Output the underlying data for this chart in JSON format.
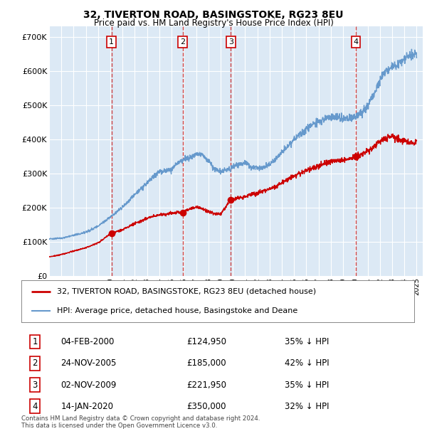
{
  "title": "32, TIVERTON ROAD, BASINGSTOKE, RG23 8EU",
  "subtitle": "Price paid vs. HM Land Registry's House Price Index (HPI)",
  "ylabel_ticks": [
    "£0",
    "£100K",
    "£200K",
    "£300K",
    "£400K",
    "£500K",
    "£600K",
    "£700K"
  ],
  "ytick_vals": [
    0,
    100000,
    200000,
    300000,
    400000,
    500000,
    600000,
    700000
  ],
  "ylim": [
    0,
    730000
  ],
  "xlim_start": 1995.0,
  "xlim_end": 2025.5,
  "plot_bg_color": "#dce9f5",
  "grid_color": "#ffffff",
  "transactions": [
    {
      "num": 1,
      "date_x": 2000.09,
      "price": 124950
    },
    {
      "num": 2,
      "date_x": 2005.9,
      "price": 185000
    },
    {
      "num": 3,
      "date_x": 2009.84,
      "price": 221950
    },
    {
      "num": 4,
      "date_x": 2020.04,
      "price": 350000
    }
  ],
  "legend_entries": [
    {
      "label": "32, TIVERTON ROAD, BASINGSTOKE, RG23 8EU (detached house)",
      "color": "#cc0000",
      "lw": 2
    },
    {
      "label": "HPI: Average price, detached house, Basingstoke and Deane",
      "color": "#6699cc",
      "lw": 1.5
    }
  ],
  "table_rows": [
    {
      "num": 1,
      "date": "04-FEB-2000",
      "price": "£124,950",
      "pct": "35% ↓ HPI"
    },
    {
      "num": 2,
      "date": "24-NOV-2005",
      "price": "£185,000",
      "pct": "42% ↓ HPI"
    },
    {
      "num": 3,
      "date": "02-NOV-2009",
      "price": "£221,950",
      "pct": "35% ↓ HPI"
    },
    {
      "num": 4,
      "date": "14-JAN-2020",
      "price": "£350,000",
      "pct": "32% ↓ HPI"
    }
  ],
  "footer": "Contains HM Land Registry data © Crown copyright and database right 2024.\nThis data is licensed under the Open Government Licence v3.0.",
  "red_line_color": "#cc0000",
  "blue_line_color": "#6699cc",
  "vline_color": "#cc3333",
  "num_box_color": "#cc0000",
  "hpi_keypoints": [
    [
      1995.0,
      108000
    ],
    [
      1996.0,
      110000
    ],
    [
      1997.0,
      118000
    ],
    [
      1998.0,
      128000
    ],
    [
      1999.0,
      145000
    ],
    [
      2000.09,
      175000
    ],
    [
      2001.0,
      200000
    ],
    [
      2002.0,
      238000
    ],
    [
      2003.0,
      272000
    ],
    [
      2004.0,
      305000
    ],
    [
      2005.0,
      310000
    ],
    [
      2005.5,
      330000
    ],
    [
      2006.0,
      340000
    ],
    [
      2007.0,
      355000
    ],
    [
      2007.5,
      355000
    ],
    [
      2008.0,
      335000
    ],
    [
      2008.5,
      315000
    ],
    [
      2009.0,
      305000
    ],
    [
      2009.84,
      315000
    ],
    [
      2010.5,
      325000
    ],
    [
      2011.0,
      330000
    ],
    [
      2011.5,
      320000
    ],
    [
      2012.0,
      315000
    ],
    [
      2012.5,
      318000
    ],
    [
      2013.0,
      325000
    ],
    [
      2014.0,
      360000
    ],
    [
      2015.0,
      400000
    ],
    [
      2016.0,
      430000
    ],
    [
      2017.0,
      455000
    ],
    [
      2017.5,
      460000
    ],
    [
      2018.0,
      465000
    ],
    [
      2018.5,
      462000
    ],
    [
      2019.0,
      460000
    ],
    [
      2019.5,
      462000
    ],
    [
      2020.04,
      465000
    ],
    [
      2020.5,
      475000
    ],
    [
      2021.0,
      500000
    ],
    [
      2021.5,
      530000
    ],
    [
      2022.0,
      570000
    ],
    [
      2022.5,
      600000
    ],
    [
      2023.0,
      610000
    ],
    [
      2023.5,
      620000
    ],
    [
      2024.0,
      635000
    ],
    [
      2024.5,
      645000
    ],
    [
      2025.0,
      650000
    ]
  ],
  "pp_keypoints": [
    [
      1995.0,
      55000
    ],
    [
      1996.0,
      62000
    ],
    [
      1997.0,
      72000
    ],
    [
      1998.0,
      82000
    ],
    [
      1999.0,
      96000
    ],
    [
      2000.09,
      124950
    ],
    [
      2001.0,
      135000
    ],
    [
      2002.0,
      152000
    ],
    [
      2003.0,
      168000
    ],
    [
      2004.0,
      178000
    ],
    [
      2005.0,
      183000
    ],
    [
      2005.5,
      187000
    ],
    [
      2005.9,
      185000
    ],
    [
      2006.0,
      186000
    ],
    [
      2006.5,
      196000
    ],
    [
      2007.0,
      200000
    ],
    [
      2007.5,
      196000
    ],
    [
      2008.0,
      188000
    ],
    [
      2008.5,
      182000
    ],
    [
      2009.0,
      180000
    ],
    [
      2009.84,
      221950
    ],
    [
      2010.0,
      222000
    ],
    [
      2010.5,
      228000
    ],
    [
      2011.0,
      232000
    ],
    [
      2011.5,
      238000
    ],
    [
      2012.0,
      242000
    ],
    [
      2013.0,
      255000
    ],
    [
      2014.0,
      272000
    ],
    [
      2015.0,
      292000
    ],
    [
      2016.0,
      308000
    ],
    [
      2017.0,
      322000
    ],
    [
      2017.5,
      330000
    ],
    [
      2018.0,
      335000
    ],
    [
      2018.5,
      338000
    ],
    [
      2019.0,
      338000
    ],
    [
      2019.5,
      342000
    ],
    [
      2020.04,
      350000
    ],
    [
      2020.5,
      355000
    ],
    [
      2021.0,
      365000
    ],
    [
      2021.5,
      378000
    ],
    [
      2022.0,
      392000
    ],
    [
      2022.5,
      405000
    ],
    [
      2023.0,
      408000
    ],
    [
      2023.5,
      400000
    ],
    [
      2024.0,
      395000
    ],
    [
      2024.5,
      390000
    ],
    [
      2025.0,
      392000
    ]
  ]
}
